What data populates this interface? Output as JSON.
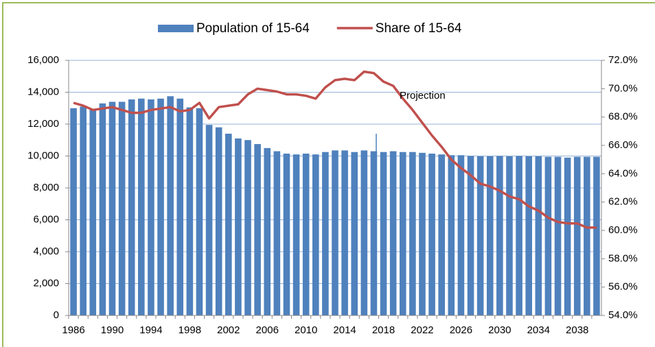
{
  "chart_data": {
    "type": "bar",
    "annotations": [
      "Projection"
    ],
    "categories": [
      "1986",
      null,
      null,
      null,
      "1990",
      null,
      null,
      null,
      "1994",
      null,
      null,
      null,
      "1998",
      null,
      null,
      null,
      "2002",
      null,
      null,
      null,
      "2006",
      null,
      null,
      null,
      "2010",
      null,
      null,
      null,
      "2014",
      null,
      null,
      null,
      "2018",
      null,
      null,
      null,
      "2022",
      null,
      null,
      null,
      "2026",
      null,
      null,
      null,
      "2030",
      null,
      null,
      null,
      "2034",
      null,
      null,
      null,
      "2038",
      null,
      null
    ],
    "series": [
      {
        "name": "Population of 15-64",
        "color": "#4f81bd",
        "type": "bar",
        "values": [
          13000,
          13100,
          12900,
          13300,
          13400,
          13400,
          13550,
          13600,
          13550,
          13600,
          13750,
          13600,
          13050,
          13000,
          11950,
          11800,
          11400,
          11100,
          11000,
          10750,
          10500,
          10300,
          10150,
          10100,
          10150,
          10100,
          10250,
          10350,
          10350,
          10250,
          10350,
          10300,
          10250,
          10300,
          10250,
          10250,
          10200,
          10150,
          10100,
          10050,
          10050,
          10000,
          9980,
          9980,
          10000,
          9980,
          10000,
          9980,
          9980,
          9950,
          9950,
          9900,
          9950,
          9950,
          9950
        ]
      },
      {
        "name": "Share of 15-64",
        "color": "#c0504d",
        "type": "line",
        "axis": "y2",
        "values": [
          69.0,
          68.8,
          68.5,
          68.6,
          68.7,
          68.5,
          68.3,
          68.3,
          68.5,
          68.6,
          68.7,
          68.4,
          68.5,
          69.0,
          67.9,
          68.7,
          68.8,
          68.9,
          69.6,
          70.0,
          69.9,
          69.8,
          69.6,
          69.6,
          69.5,
          69.3,
          70.1,
          70.6,
          70.7,
          70.6,
          71.2,
          71.1,
          70.5,
          70.2,
          69.3,
          68.5,
          67.6,
          66.7,
          65.9,
          65.0,
          64.4,
          63.9,
          63.3,
          63.1,
          62.8,
          62.4,
          62.2,
          61.7,
          61.4,
          60.9,
          60.6,
          60.5,
          60.5,
          60.2,
          60.2
        ]
      }
    ],
    "ylim": [
      0,
      16000
    ],
    "yticks": [
      0,
      {
        "value": 2000,
        "label": "2,000"
      },
      {
        "value": 4000,
        "label": "4,000"
      },
      {
        "value": 6000,
        "label": "6,000"
      },
      {
        "value": 8000,
        "label": "8,000"
      },
      {
        "value": 10000,
        "label": "10,000"
      },
      {
        "value": 12000,
        "label": "12,000"
      },
      {
        "value": 14000,
        "label": "14,000"
      },
      {
        "value": 16000,
        "label": "16,000"
      }
    ],
    "y2lim": [
      54,
      72
    ],
    "y2ticks": [
      {
        "value": 54,
        "label": "54.0%"
      },
      {
        "value": 56,
        "label": "56.0%"
      },
      {
        "value": 58,
        "label": "58.0%"
      },
      {
        "value": 60,
        "label": "60.0%"
      },
      {
        "value": 62,
        "label": "62.0%"
      },
      {
        "value": 64,
        "label": "64.0%"
      },
      {
        "value": 66,
        "label": "66.0%"
      },
      {
        "value": 68,
        "label": "68.0%"
      },
      {
        "value": 70,
        "label": "70.0%"
      },
      {
        "value": 72,
        "label": "72.0%"
      }
    ],
    "grid": true,
    "legend": "top"
  }
}
